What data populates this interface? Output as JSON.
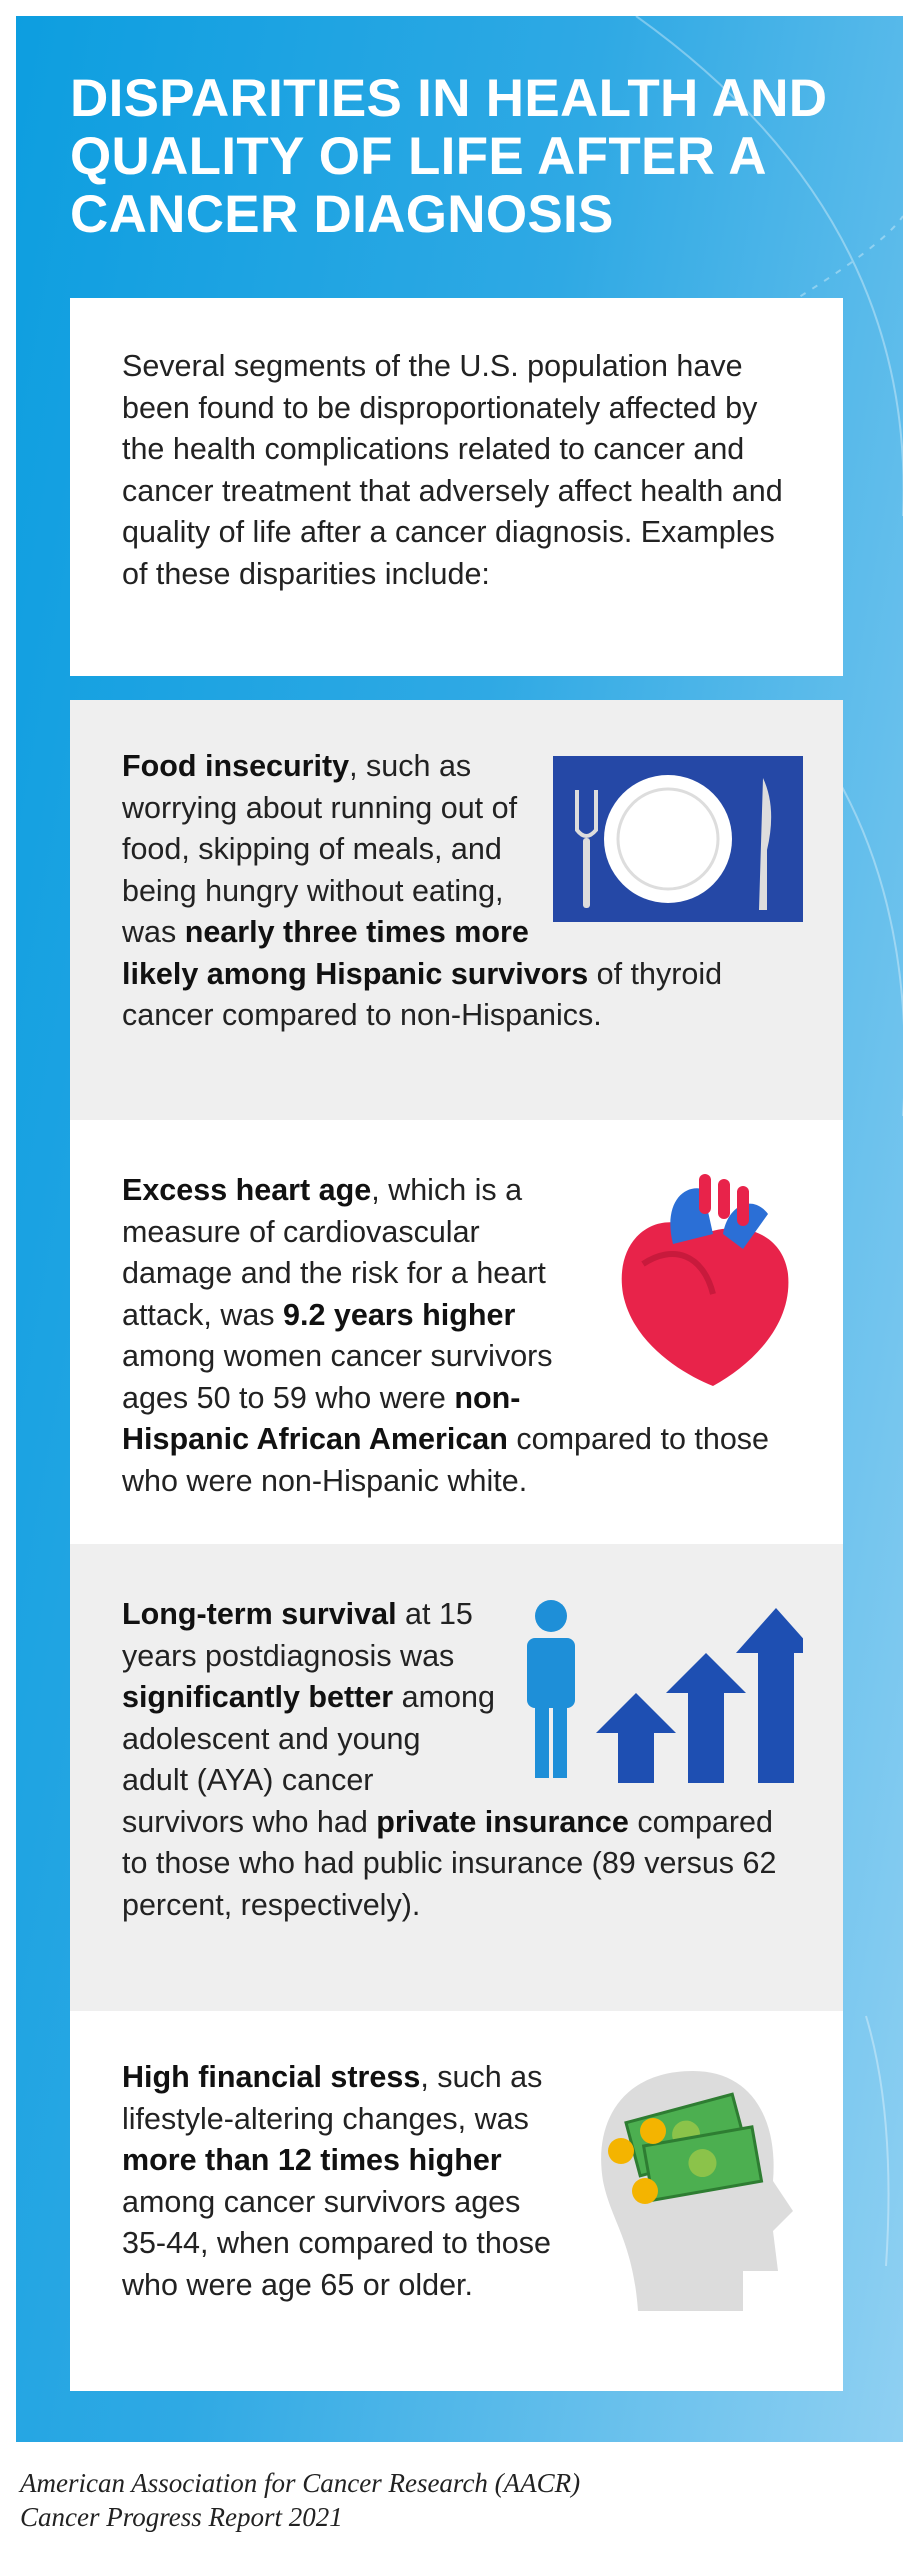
{
  "header": {
    "title": "DISPARITIES IN HEALTH AND QUALITY OF LIFE AFTER A CANCER DIAGNOSIS"
  },
  "intro": "Several segments of the U.S. population have been found to be disproportionately affected by the health complications related to cancer and cancer treatment that adversely affect health and quality of life after a cancer diagnosis. Examples of these disparities include:",
  "items": [
    {
      "segments": [
        {
          "text": "Food insecurity",
          "bold": true
        },
        {
          "text": ", such as worrying about running out of food, skipping of meals, and being hungry without eating, was ",
          "bold": false
        },
        {
          "text": "nearly three times more likely among Hispanic survivors",
          "bold": true
        },
        {
          "text": " of thyroid cancer compared to non-Hispanics.",
          "bold": false
        }
      ]
    },
    {
      "segments": [
        {
          "text": "Excess heart age",
          "bold": true
        },
        {
          "text": ", which is a measure of cardiovascular damage and the risk for a heart attack, was ",
          "bold": false
        },
        {
          "text": "9.2 years higher",
          "bold": true
        },
        {
          "text": " among women cancer survivors ages 50 to 59 who were ",
          "bold": false
        },
        {
          "text": "non-Hispanic African American",
          "bold": true
        },
        {
          "text": " compared to those who were non-Hispanic white.",
          "bold": false
        }
      ]
    },
    {
      "segments": [
        {
          "text": "Long-term survival",
          "bold": true
        },
        {
          "text": " at 15 years postdiagnosis was ",
          "bold": false
        },
        {
          "text": "significantly better",
          "bold": true
        },
        {
          "text": " among adolescent and young adult (AYA) cancer survivors who had ",
          "bold": false
        },
        {
          "text": "private insurance",
          "bold": true
        },
        {
          "text": " compared to those who had public insurance (89 versus 62 percent, respectively).",
          "bold": false
        }
      ]
    },
    {
      "segments": [
        {
          "text": "High financial stress",
          "bold": true
        },
        {
          "text": ", such as lifestyle-altering changes, was ",
          "bold": false
        },
        {
          "text": "more than 12 times higher",
          "bold": true
        },
        {
          "text": " among cancer survivors ages 35-44, when compared to those who were age 65 or older.",
          "bold": false
        }
      ]
    }
  ],
  "footer": {
    "lines": [
      "American Association for Cancer Research (AACR)",
      "Cancer Progress Report 2021"
    ]
  }
}
